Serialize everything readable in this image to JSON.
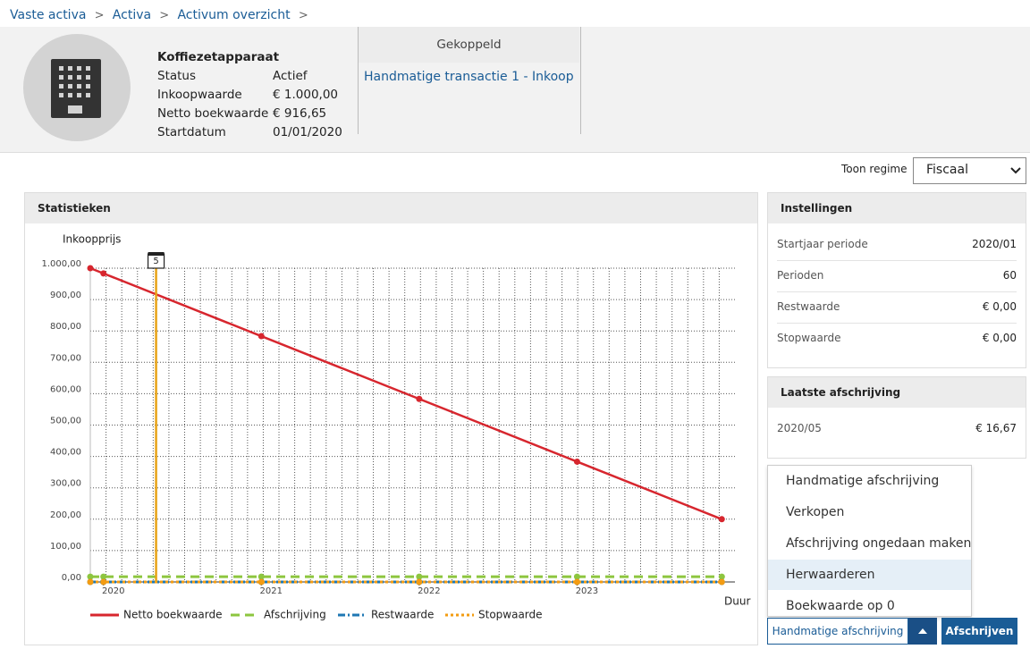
{
  "breadcrumb": [
    "Vaste activa",
    "Activa",
    "Activum overzicht"
  ],
  "asset": {
    "name": "Koffiezetapparaat",
    "fields": [
      {
        "label": "Status",
        "value": "Actief"
      },
      {
        "label": "Inkoopwaarde",
        "value": "€ 1.000,00"
      },
      {
        "label": "Netto boekwaarde",
        "value": "€ 916,65"
      },
      {
        "label": "Startdatum",
        "value": "01/01/2020"
      }
    ]
  },
  "linked": {
    "title": "Gekoppeld",
    "items": [
      "Handmatige transactie 1 - Inkoop"
    ]
  },
  "regime": {
    "label": "Toon regime",
    "selected": "Fiscaal"
  },
  "statistics": {
    "title": "Statistieken",
    "chart_data": {
      "type": "line",
      "y_label": "Inkoopprijs",
      "x_label": "Duur",
      "xlim": [
        0,
        49
      ],
      "xticks": [
        {
          "value": 1,
          "label": "2020"
        },
        {
          "value": 13,
          "label": "2021"
        },
        {
          "value": 25,
          "label": "2022"
        },
        {
          "value": 37,
          "label": "2023"
        }
      ],
      "ylim": [
        0,
        1000
      ],
      "yticks": [
        {
          "value": 0,
          "label": "0,00"
        },
        {
          "value": 100,
          "label": "100,00"
        },
        {
          "value": 200,
          "label": "200,00"
        },
        {
          "value": 300,
          "label": "300,00"
        },
        {
          "value": 400,
          "label": "400,00"
        },
        {
          "value": 500,
          "label": "500,00"
        },
        {
          "value": 600,
          "label": "600,00"
        },
        {
          "value": 700,
          "label": "700,00"
        },
        {
          "value": 800,
          "label": "800,00"
        },
        {
          "value": 900,
          "label": "900,00"
        },
        {
          "value": 1000,
          "label": "1.000,00"
        }
      ],
      "grid": true,
      "series": [
        {
          "name": "Netto boekwaarde",
          "color": "#d7262e",
          "dash": "solid",
          "x": [
            0,
            1,
            13,
            25,
            37,
            48
          ],
          "values": [
            1000,
            983.33,
            783.33,
            583.33,
            383.33,
            200
          ]
        },
        {
          "name": "Afschrijving",
          "color": "#8dc63f",
          "dash": "dashed",
          "x": [
            0,
            1,
            13,
            25,
            37,
            48
          ],
          "values": [
            16.67,
            16.67,
            16.67,
            16.67,
            16.67,
            16.67
          ]
        },
        {
          "name": "Restwaarde",
          "color": "#1f78b4",
          "dash": "dashdot",
          "x": [
            0,
            1,
            13,
            25,
            37,
            48
          ],
          "values": [
            0,
            0,
            0,
            0,
            0,
            0
          ]
        },
        {
          "name": "Stopwaarde",
          "color": "#f39c12",
          "dash": "dotted",
          "x": [
            0,
            1,
            13,
            25,
            37,
            48
          ],
          "values": [
            0,
            0,
            0,
            0,
            0,
            0
          ]
        }
      ],
      "annotations": [
        {
          "x": 5,
          "label": "5",
          "color": "#e8a317"
        }
      ]
    }
  },
  "settings": {
    "title": "Instellingen",
    "rows": [
      [
        "Startjaar periode",
        "2020/01"
      ],
      [
        "Perioden",
        "60"
      ],
      [
        "Restwaarde",
        "€ 0,00"
      ],
      [
        "Stopwaarde",
        "€ 0,00"
      ]
    ]
  },
  "last_depreciation": {
    "title": "Laatste afschrijving",
    "rows": [
      [
        "2020/05",
        "€ 16,67"
      ]
    ]
  },
  "menu": {
    "items": [
      "Handmatige afschrijving",
      "Verkopen",
      "Afschrijving ongedaan maken",
      "Herwaarderen",
      "Boekwaarde op 0"
    ]
  },
  "buttons": {
    "split": "Handmatige afschrijving",
    "primary": "Afschrijven"
  }
}
